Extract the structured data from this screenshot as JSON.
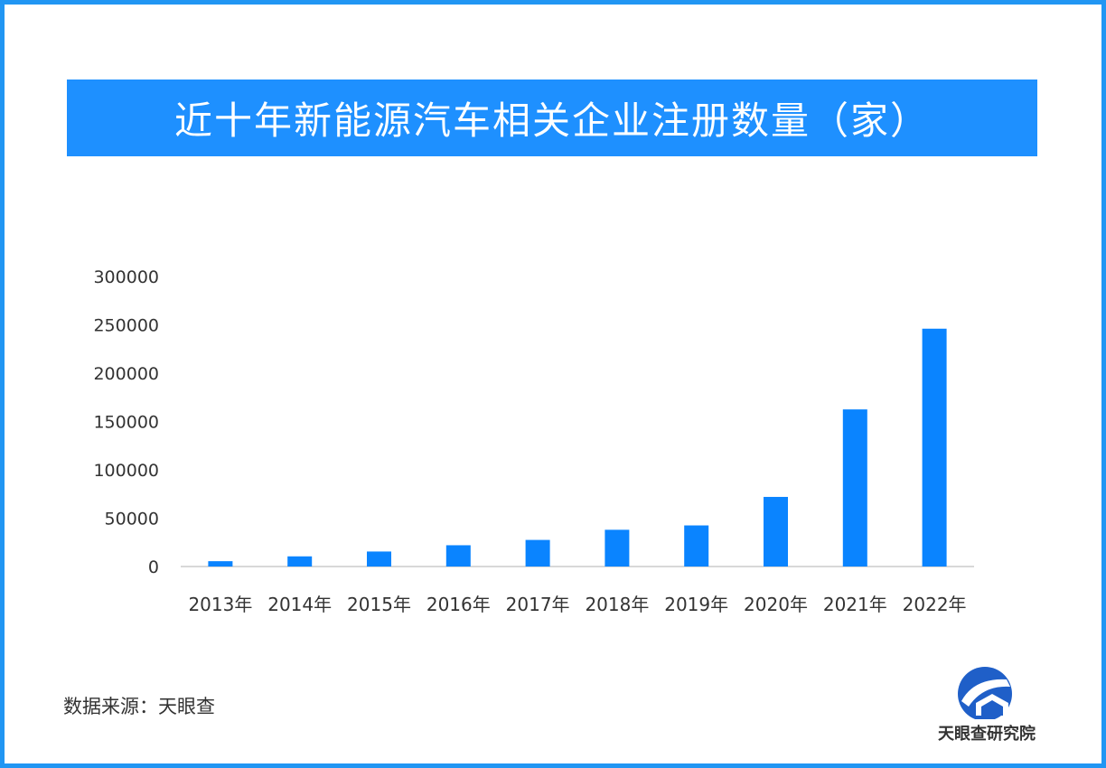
{
  "title": "近十年新能源汽车相关企业注册数量（家）",
  "source": "数据来源：天眼查",
  "logo": {
    "text": "天眼查研究院",
    "icon": "tianyancha-logo-icon"
  },
  "colors": {
    "accent": "#1e90ff",
    "bar": "#0a84ff",
    "frame": "#2196f3",
    "axis": "#cccccc",
    "text": "#333333"
  },
  "chart_data": {
    "type": "bar",
    "categories": [
      "2013年",
      "2014年",
      "2015年",
      "2016年",
      "2017年",
      "2018年",
      "2019年",
      "2020年",
      "2021年",
      "2022年"
    ],
    "values": [
      5500,
      10500,
      15500,
      22000,
      27500,
      38000,
      42500,
      72000,
      162500,
      246000
    ],
    "ylim": [
      0,
      300000
    ],
    "yticks": [
      "0",
      "50000",
      "100000",
      "150000",
      "200000",
      "250000",
      "300000"
    ],
    "title": "近十年新能源汽车相关企业注册数量（家）",
    "xlabel": "",
    "ylabel": "",
    "grid": false,
    "legend": "none"
  }
}
